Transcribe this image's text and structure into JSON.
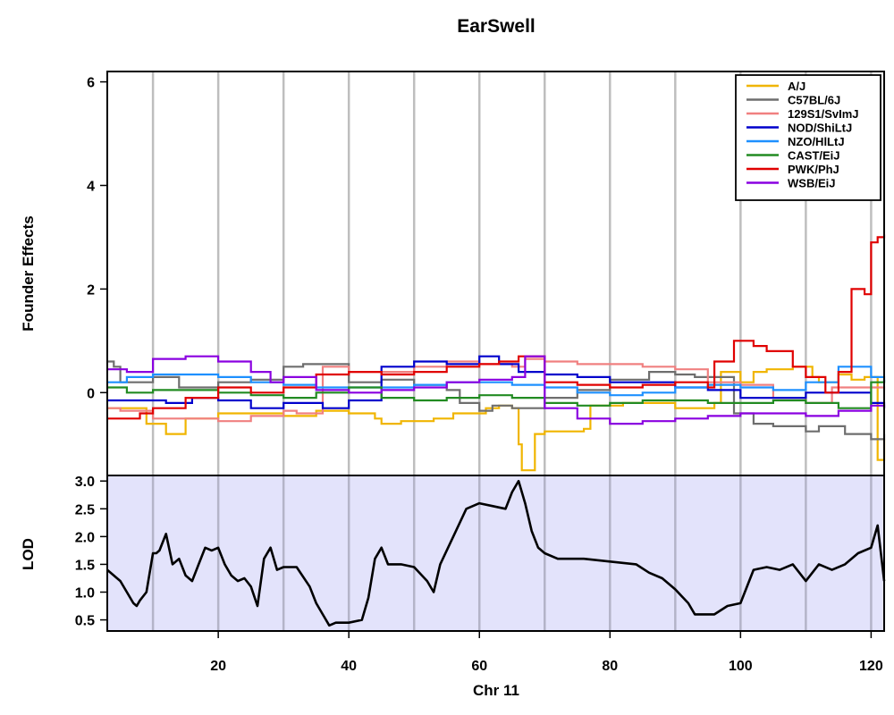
{
  "chart_data": [
    {
      "type": "line",
      "title": "EarSwell",
      "xlabel": "Chr 11",
      "ylabel": "Founder Effects",
      "xlim": [
        3,
        122
      ],
      "ylim": [
        -1.6,
        6.2
      ],
      "y_ticks": [
        0,
        2,
        4,
        6
      ],
      "x_gridlines": [
        10,
        20,
        30,
        40,
        50,
        60,
        70,
        80,
        90,
        100,
        110,
        120
      ],
      "grid": "vertical",
      "legend_position": "top-right",
      "series": [
        {
          "name": "A/J",
          "color": "#F0B500",
          "x": [
            3,
            8,
            9,
            12,
            15,
            20,
            25,
            30,
            35,
            40,
            44,
            45,
            48,
            53,
            56,
            61,
            63,
            65,
            66,
            66.5,
            68,
            68.5,
            70,
            76,
            77,
            82,
            90,
            96,
            97,
            100,
            102,
            104,
            108,
            111,
            112,
            115,
            117,
            119,
            121,
            122
          ],
          "y": [
            -0.3,
            -0.3,
            -0.6,
            -0.8,
            -0.5,
            -0.4,
            -0.4,
            -0.45,
            -0.35,
            -0.4,
            -0.5,
            -0.6,
            -0.55,
            -0.5,
            -0.4,
            -0.3,
            -0.25,
            -0.3,
            -1.0,
            -1.5,
            -1.5,
            -0.8,
            -0.75,
            -0.7,
            -0.25,
            -0.2,
            -0.3,
            -0.2,
            0.4,
            0.2,
            0.4,
            0.45,
            0.5,
            0.3,
            0.2,
            0.35,
            0.25,
            0.3,
            -1.3,
            -0.9
          ]
        },
        {
          "name": "C57BL/6J",
          "color": "#6E6E6E",
          "x": [
            3,
            4,
            5,
            10,
            14,
            20,
            25,
            30,
            33,
            40,
            45,
            50,
            55,
            57,
            60,
            62,
            65,
            70,
            75,
            80,
            86,
            90,
            93,
            99,
            102,
            105,
            110,
            112,
            116,
            120,
            122
          ],
          "y": [
            0.6,
            0.5,
            0.2,
            0.3,
            0.1,
            0.2,
            0.25,
            0.5,
            0.55,
            0.2,
            0.25,
            0.15,
            0.05,
            -0.2,
            -0.35,
            -0.25,
            -0.3,
            -0.1,
            0.05,
            0.25,
            0.4,
            0.35,
            0.3,
            -0.4,
            -0.6,
            -0.65,
            -0.75,
            -0.65,
            -0.8,
            -0.9,
            -0.8
          ]
        },
        {
          "name": "129S1/SvImJ",
          "color": "#F08080",
          "x": [
            3,
            5,
            10,
            15,
            20,
            25,
            30,
            32,
            36,
            40,
            45,
            50,
            55,
            60,
            65,
            67,
            70,
            75,
            80,
            85,
            90,
            95,
            100,
            105,
            110,
            114,
            118,
            122
          ],
          "y": [
            -0.3,
            -0.35,
            -0.5,
            -0.5,
            -0.55,
            -0.45,
            -0.35,
            -0.4,
            0.5,
            0.4,
            0.4,
            0.5,
            0.6,
            0.55,
            0.5,
            0.65,
            0.6,
            0.55,
            0.55,
            0.5,
            0.45,
            0.2,
            0.15,
            -0.1,
            -0.2,
            0.1,
            0.1,
            0.05
          ]
        },
        {
          "name": "NOD/ShiLtJ",
          "color": "#0000CC",
          "x": [
            3,
            8,
            12,
            16,
            20,
            25,
            30,
            36,
            40,
            45,
            50,
            55,
            60,
            63,
            66,
            70,
            75,
            80,
            85,
            90,
            95,
            100,
            105,
            110,
            115,
            120,
            122
          ],
          "y": [
            -0.15,
            -0.15,
            -0.2,
            -0.1,
            -0.15,
            -0.3,
            -0.2,
            -0.3,
            -0.15,
            0.5,
            0.6,
            0.55,
            0.7,
            0.55,
            0.4,
            0.35,
            0.3,
            0.2,
            0.2,
            0.1,
            0.05,
            -0.1,
            -0.1,
            0.0,
            0.0,
            -0.2,
            -0.3
          ]
        },
        {
          "name": "NZO/HlLtJ",
          "color": "#1E90FF",
          "x": [
            3,
            6,
            10,
            15,
            20,
            25,
            30,
            35,
            40,
            45,
            50,
            55,
            60,
            65,
            70,
            75,
            80,
            85,
            90,
            95,
            100,
            105,
            110,
            115,
            120,
            122
          ],
          "y": [
            0.2,
            0.3,
            0.35,
            0.35,
            0.3,
            0.2,
            0.15,
            0.1,
            0.1,
            0.1,
            0.15,
            0.2,
            0.2,
            0.15,
            0.1,
            0.0,
            -0.05,
            0.0,
            0.1,
            0.15,
            0.1,
            0.05,
            0.2,
            0.5,
            0.3,
            0.2
          ]
        },
        {
          "name": "CAST/EiJ",
          "color": "#228B22",
          "x": [
            3,
            6,
            10,
            15,
            20,
            25,
            30,
            35,
            40,
            45,
            50,
            55,
            60,
            65,
            70,
            75,
            80,
            85,
            90,
            95,
            100,
            105,
            110,
            115,
            120,
            122
          ],
          "y": [
            0.1,
            0.0,
            0.05,
            0.05,
            0.0,
            -0.05,
            -0.1,
            0.0,
            0.1,
            -0.1,
            -0.15,
            -0.1,
            -0.05,
            -0.1,
            -0.2,
            -0.25,
            -0.2,
            -0.15,
            -0.15,
            -0.2,
            -0.2,
            -0.15,
            -0.2,
            -0.3,
            0.2,
            0.25
          ]
        },
        {
          "name": "PWK/PhJ",
          "color": "#E00000",
          "x": [
            3,
            8,
            10,
            15,
            20,
            25,
            30,
            35,
            40,
            45,
            50,
            55,
            60,
            63,
            66,
            70,
            75,
            80,
            85,
            90,
            95,
            96,
            99,
            102,
            104,
            108,
            110,
            113,
            115,
            117,
            119,
            120,
            121,
            122
          ],
          "y": [
            -0.5,
            -0.4,
            -0.3,
            -0.1,
            0.1,
            0.0,
            0.1,
            0.35,
            0.4,
            0.35,
            0.4,
            0.5,
            0.55,
            0.6,
            0.7,
            0.2,
            0.15,
            0.1,
            0.15,
            0.2,
            0.1,
            0.6,
            1.0,
            0.9,
            0.8,
            0.5,
            0.3,
            0.0,
            0.4,
            2.0,
            1.9,
            2.9,
            3.0,
            3.05
          ]
        },
        {
          "name": "WSB/EiJ",
          "color": "#8A00E0",
          "x": [
            3,
            6,
            10,
            15,
            20,
            25,
            28,
            30,
            35,
            40,
            45,
            50,
            55,
            60,
            65,
            67,
            70,
            75,
            80,
            85,
            90,
            95,
            100,
            105,
            110,
            115,
            120,
            122
          ],
          "y": [
            0.45,
            0.4,
            0.65,
            0.7,
            0.6,
            0.4,
            0.2,
            0.3,
            0.05,
            0.0,
            0.05,
            0.1,
            0.2,
            0.25,
            0.3,
            0.7,
            -0.3,
            -0.5,
            -0.6,
            -0.55,
            -0.5,
            -0.45,
            -0.4,
            -0.4,
            -0.45,
            -0.35,
            -0.25,
            -0.3
          ]
        }
      ]
    },
    {
      "type": "line",
      "xlabel": "Chr 11",
      "ylabel": "LOD",
      "xlim": [
        3,
        122
      ],
      "ylim": [
        0.3,
        3.1
      ],
      "y_ticks": [
        0.5,
        1.0,
        1.5,
        2.0,
        2.5,
        3.0
      ],
      "x_ticks": [
        20,
        40,
        60,
        80,
        100,
        120
      ],
      "x_gridlines": [
        10,
        20,
        30,
        40,
        50,
        60,
        70,
        80,
        90,
        100,
        110,
        120
      ],
      "grid": "vertical",
      "background_color": "#E3E3FB",
      "line_color": "#000000",
      "x": [
        3,
        4,
        5,
        6,
        7,
        7.5,
        8,
        9,
        10,
        10.5,
        11,
        12,
        13,
        14,
        15,
        16,
        17,
        18,
        19,
        20,
        21,
        22,
        23,
        24,
        25,
        26,
        27,
        28,
        29,
        30,
        32,
        34,
        35,
        36,
        37,
        38,
        40,
        42,
        43,
        44,
        45,
        46,
        48,
        50,
        52,
        53,
        54,
        56,
        58,
        60,
        62,
        64,
        65,
        66,
        67,
        68,
        69,
        70,
        72,
        76,
        80,
        84,
        86,
        88,
        90,
        92,
        93,
        94,
        96,
        98,
        100,
        102,
        104,
        106,
        108,
        110,
        112,
        114,
        116,
        118,
        120,
        121,
        122
      ],
      "y": [
        1.4,
        1.3,
        1.2,
        1.0,
        0.8,
        0.75,
        0.85,
        1.0,
        1.7,
        1.7,
        1.75,
        2.05,
        1.5,
        1.6,
        1.3,
        1.2,
        1.5,
        1.8,
        1.75,
        1.8,
        1.5,
        1.3,
        1.2,
        1.25,
        1.1,
        0.75,
        1.6,
        1.8,
        1.4,
        1.45,
        1.45,
        1.1,
        0.8,
        0.6,
        0.4,
        0.45,
        0.45,
        0.5,
        0.9,
        1.6,
        1.8,
        1.5,
        1.5,
        1.45,
        1.2,
        1.0,
        1.5,
        2.0,
        2.5,
        2.6,
        2.55,
        2.5,
        2.8,
        3.0,
        2.6,
        2.1,
        1.8,
        1.7,
        1.6,
        1.6,
        1.55,
        1.5,
        1.35,
        1.25,
        1.05,
        0.8,
        0.6,
        0.6,
        0.6,
        0.75,
        0.8,
        1.4,
        1.45,
        1.4,
        1.5,
        1.2,
        1.5,
        1.4,
        1.5,
        1.7,
        1.8,
        2.2,
        1.2
      ]
    }
  ]
}
